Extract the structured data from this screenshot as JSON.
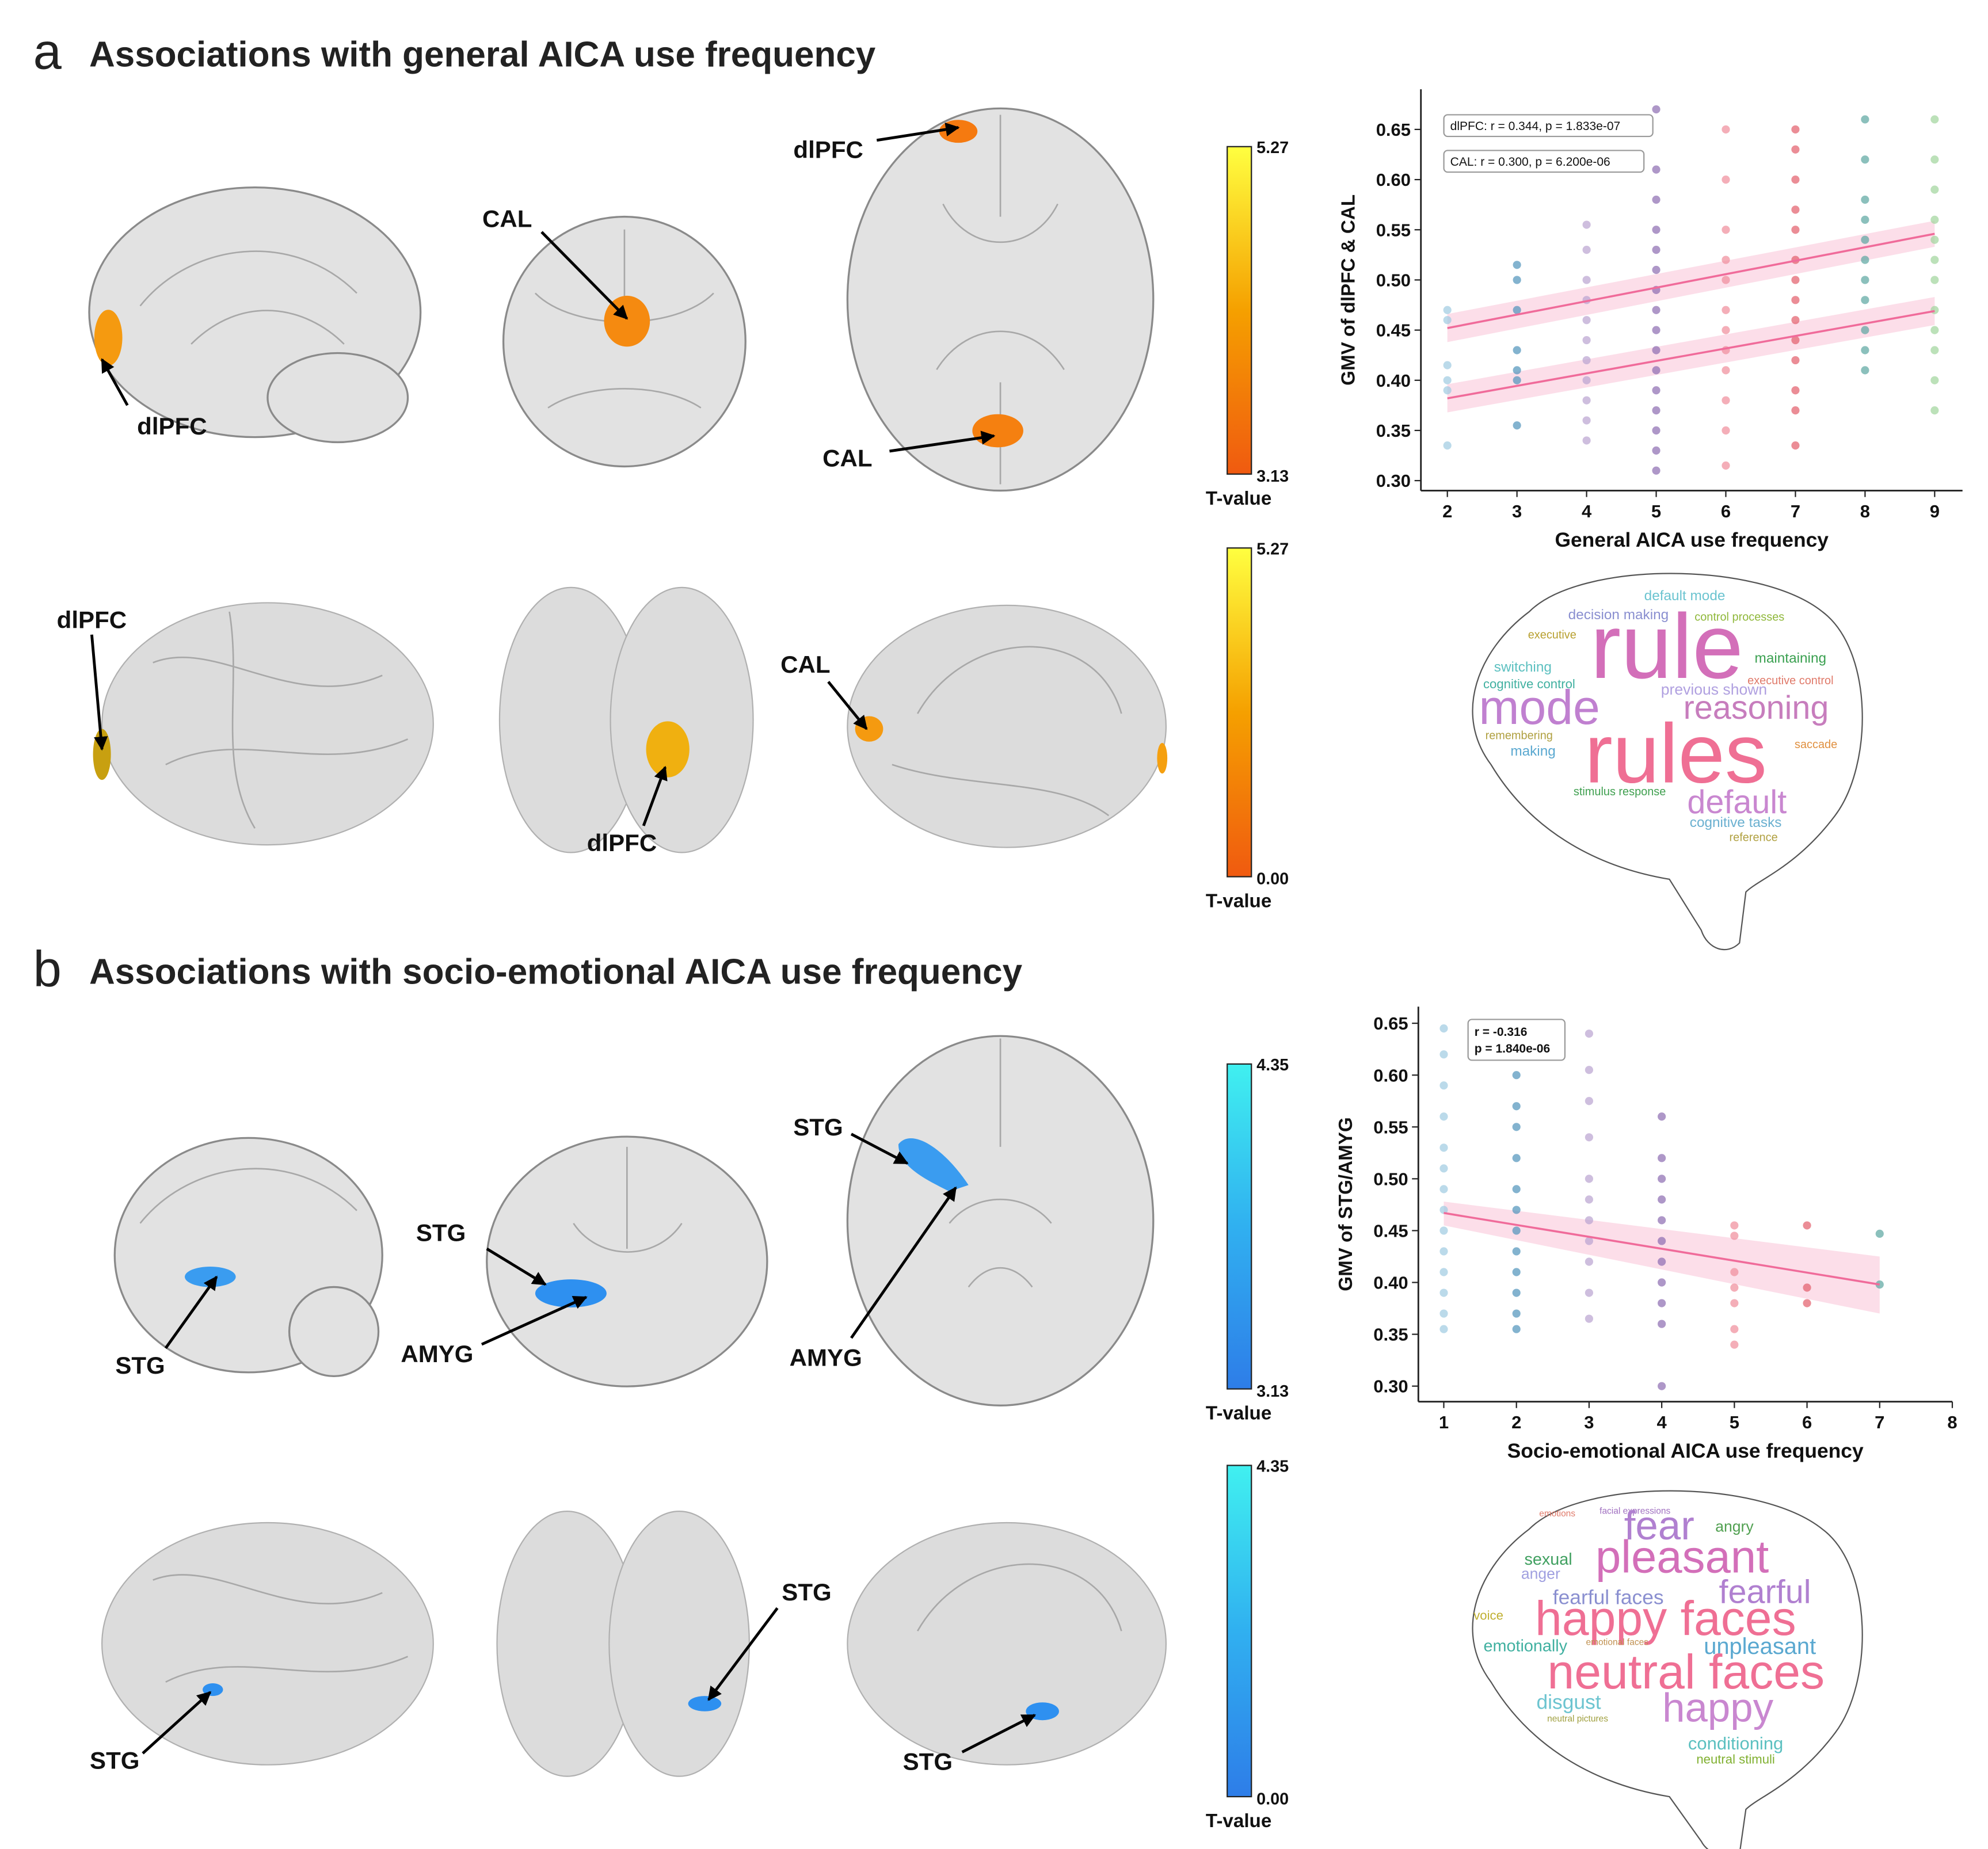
{
  "panels": [
    {
      "letter": "a",
      "title": "Associations with general AICA use frequency",
      "regions": [
        "dlPFC",
        "CAL",
        "dlPFC",
        "CAL",
        "dlPFC",
        "CAL",
        "dlPFC"
      ],
      "colorbars": [
        {
          "top": "5.27",
          "bottom": "3.13",
          "label": "T-value",
          "colors": [
            "#ffff40",
            "#f5a000",
            "#f05a10"
          ]
        },
        {
          "top": "5.27",
          "bottom": "0.00",
          "label": "T-value",
          "colors": [
            "#ffff40",
            "#f5a000",
            "#f05a10"
          ]
        }
      ],
      "words": [
        {
          "text": "default mode",
          "color": "#6cc4d0"
        },
        {
          "text": "decision making",
          "color": "#8a8fd0"
        },
        {
          "text": "control processes",
          "color": "#8fb83a"
        },
        {
          "text": "executive",
          "color": "#b8a030"
        },
        {
          "text": "rule",
          "color": "#d36fb9"
        },
        {
          "text": "maintaining",
          "color": "#3aa050"
        },
        {
          "text": "switching",
          "color": "#5cc0c0"
        },
        {
          "text": "cognitive control",
          "color": "#40b0a0"
        },
        {
          "text": "executive control",
          "color": "#e07a6a"
        },
        {
          "text": "previous shown",
          "color": "#b0a0e0"
        },
        {
          "text": "mode",
          "color": "#c080d0"
        },
        {
          "text": "reasoning",
          "color": "#c77dbd"
        },
        {
          "text": "remembering",
          "color": "#b0a040"
        },
        {
          "text": "saccade",
          "color": "#e09040"
        },
        {
          "text": "making",
          "color": "#5aa8d0"
        },
        {
          "text": "rules",
          "color": "#ef6f94"
        },
        {
          "text": "stimulus response",
          "color": "#40a050"
        },
        {
          "text": "default",
          "color": "#c987d0"
        },
        {
          "text": "cognitive tasks",
          "color": "#6ab0d0"
        },
        {
          "text": "reference",
          "color": "#b0a040"
        }
      ]
    },
    {
      "letter": "b",
      "title": "Associations with socio-emotional AICA use frequency",
      "regions": [
        "STG",
        "STG",
        "AMYG",
        "STG",
        "AMYG",
        "STG",
        "STG",
        "STG"
      ],
      "colorbars": [
        {
          "top": "4.35",
          "bottom": "3.13",
          "label": "T-value",
          "colors": [
            "#40f0f0",
            "#30b0f0",
            "#2e7de8"
          ]
        },
        {
          "top": "4.35",
          "bottom": "0.00",
          "label": "T-value",
          "colors": [
            "#40f0f0",
            "#30b0f0",
            "#2e7de8"
          ]
        }
      ],
      "words": [
        {
          "text": "facial expressions",
          "color": "#a070c0"
        },
        {
          "text": "fear",
          "color": "#b080d0"
        },
        {
          "text": "angry",
          "color": "#50a050"
        },
        {
          "text": "emotions",
          "color": "#e07a6a"
        },
        {
          "text": "pleasant",
          "color": "#d36fb9"
        },
        {
          "text": "sexual",
          "color": "#40a060"
        },
        {
          "text": "anger",
          "color": "#a0a0e0"
        },
        {
          "text": "fearful faces",
          "color": "#8a8fd0"
        },
        {
          "text": "fearful",
          "color": "#b080d0"
        },
        {
          "text": "voice",
          "color": "#c0b030"
        },
        {
          "text": "happy faces",
          "color": "#ef6f94"
        },
        {
          "text": "emotional faces",
          "color": "#c09050"
        },
        {
          "text": "emotionally",
          "color": "#40b0a0"
        },
        {
          "text": "unpleasant",
          "color": "#5aa8d0"
        },
        {
          "text": "neutral faces",
          "color": "#ef6f94"
        },
        {
          "text": "disgust",
          "color": "#6cc4d0"
        },
        {
          "text": "happy",
          "color": "#c987d0"
        },
        {
          "text": "neutral pictures",
          "color": "#a0a040"
        },
        {
          "text": "conditioning",
          "color": "#5cc0c0"
        },
        {
          "text": "neutral stimuli",
          "color": "#80b030"
        }
      ]
    }
  ],
  "chart_data": [
    {
      "type": "scatter",
      "x_label": "General AICA use frequency",
      "y_label": "GMV of dlPFC & CAL",
      "xlim": [
        1.62,
        9.4
      ],
      "ylim": [
        0.29,
        0.69
      ],
      "xticks": [
        2,
        3,
        4,
        5,
        6,
        7,
        8,
        9
      ],
      "yticks": [
        {
          "value": 0.3,
          "label": "0.30"
        },
        0.35,
        {
          "value": 0.4,
          "label": "0.40"
        },
        0.45,
        {
          "value": 0.5,
          "label": "0.50"
        },
        0.55,
        {
          "value": 0.6,
          "label": "0.60"
        },
        0.65
      ],
      "annotations": [
        "dlPFC: r = 0.344, p = 1.833e-07",
        "CAL: r = 0.300, p = 6.200e-06"
      ],
      "series": [
        {
          "color": "#9ecae1",
          "x": [
            2,
            2,
            2,
            2,
            2,
            2
          ],
          "values": [
            0.335,
            0.39,
            0.4,
            0.415,
            0.46,
            0.47
          ]
        },
        {
          "color": "#4f93bb",
          "x": [
            3,
            3,
            3,
            3,
            3,
            3,
            3
          ],
          "values": [
            0.355,
            0.4,
            0.41,
            0.43,
            0.47,
            0.5,
            0.515
          ]
        },
        {
          "color": "#b9a2d0",
          "x": [
            4,
            4,
            4,
            4,
            4,
            4,
            4,
            4,
            4,
            4,
            4
          ],
          "values": [
            0.34,
            0.36,
            0.38,
            0.4,
            0.42,
            0.44,
            0.46,
            0.48,
            0.5,
            0.53,
            0.555
          ]
        },
        {
          "color": "#8c6bb1",
          "x": [
            5,
            5,
            5,
            5,
            5,
            5,
            5,
            5,
            5,
            5,
            5,
            5,
            5,
            5,
            5,
            5
          ],
          "values": [
            0.31,
            0.33,
            0.35,
            0.37,
            0.39,
            0.41,
            0.43,
            0.45,
            0.47,
            0.49,
            0.51,
            0.53,
            0.55,
            0.58,
            0.61,
            0.67
          ]
        },
        {
          "color": "#f08c9a",
          "x": [
            6,
            6,
            6,
            6,
            6,
            6,
            6,
            6,
            6,
            6,
            6,
            6
          ],
          "values": [
            0.315,
            0.35,
            0.38,
            0.41,
            0.43,
            0.45,
            0.47,
            0.5,
            0.52,
            0.55,
            0.6,
            0.65
          ]
        },
        {
          "color": "#e35d6a",
          "x": [
            7,
            7,
            7,
            7,
            7,
            7,
            7,
            7,
            7,
            7,
            7,
            7,
            7,
            7
          ],
          "values": [
            0.335,
            0.37,
            0.39,
            0.42,
            0.44,
            0.46,
            0.48,
            0.5,
            0.52,
            0.55,
            0.57,
            0.6,
            0.63,
            0.65
          ]
        },
        {
          "color": "#5aa5a0",
          "x": [
            8,
            8,
            8,
            8,
            8,
            8,
            8,
            8,
            8,
            8,
            8
          ],
          "values": [
            0.41,
            0.43,
            0.45,
            0.48,
            0.5,
            0.52,
            0.54,
            0.56,
            0.58,
            0.62,
            0.66
          ]
        },
        {
          "color": "#9fd49b",
          "x": [
            9,
            9,
            9,
            9,
            9,
            9,
            9,
            9,
            9,
            9,
            9,
            9
          ],
          "values": [
            0.37,
            0.4,
            0.43,
            0.45,
            0.47,
            0.5,
            0.52,
            0.54,
            0.56,
            0.59,
            0.62,
            0.66
          ]
        }
      ],
      "fits": [
        {
          "color": "#f06b9a",
          "x": [
            2,
            9
          ],
          "values": [
            0.452,
            0.546
          ],
          "ci_lower": [
            0.438,
            0.533
          ],
          "ci_upper": [
            0.466,
            0.559
          ]
        },
        {
          "color": "#f06b9a",
          "x": [
            2,
            9
          ],
          "values": [
            0.382,
            0.469
          ],
          "ci_lower": [
            0.368,
            0.455
          ],
          "ci_upper": [
            0.396,
            0.483
          ]
        }
      ]
    },
    {
      "type": "scatter",
      "x_label": "Socio-emotional AICA use frequency",
      "y_label": "GMV of STG/AMYG",
      "xlim": [
        0.65,
        8.0
      ],
      "ylim": [
        0.285,
        0.666
      ],
      "xticks": [
        1,
        2,
        3,
        4,
        5,
        6,
        7,
        8
      ],
      "yticks": [
        {
          "value": 0.3,
          "label": "0.30"
        },
        0.35,
        {
          "value": 0.4,
          "label": "0.40"
        },
        0.45,
        {
          "value": 0.5,
          "label": "0.50"
        },
        0.55,
        {
          "value": 0.6,
          "label": "0.60"
        },
        0.65
      ],
      "annotations": [
        "r = -0.316",
        "p = 1.840e-06"
      ],
      "series": [
        {
          "color": "#9ecae1",
          "x": [
            1,
            1,
            1,
            1,
            1,
            1,
            1,
            1,
            1,
            1,
            1,
            1,
            1,
            1
          ],
          "values": [
            0.355,
            0.37,
            0.39,
            0.41,
            0.43,
            0.45,
            0.47,
            0.49,
            0.51,
            0.53,
            0.56,
            0.59,
            0.62,
            0.645
          ]
        },
        {
          "color": "#4f93bb",
          "x": [
            2,
            2,
            2,
            2,
            2,
            2,
            2,
            2,
            2,
            2,
            2,
            2
          ],
          "values": [
            0.355,
            0.37,
            0.39,
            0.41,
            0.43,
            0.45,
            0.47,
            0.49,
            0.52,
            0.55,
            0.57,
            0.6
          ]
        },
        {
          "color": "#b9a2d0",
          "x": [
            3,
            3,
            3,
            3,
            3,
            3,
            3,
            3,
            3,
            3,
            3
          ],
          "values": [
            0.365,
            0.39,
            0.42,
            0.44,
            0.46,
            0.48,
            0.5,
            0.54,
            0.575,
            0.605,
            0.64
          ]
        },
        {
          "color": "#8c6bb1",
          "x": [
            4,
            4,
            4,
            4,
            4,
            4,
            4,
            4,
            4,
            4,
            4
          ],
          "values": [
            0.3,
            0.36,
            0.38,
            0.4,
            0.42,
            0.44,
            0.46,
            0.48,
            0.5,
            0.52,
            0.56
          ]
        },
        {
          "color": "#f08c9a",
          "x": [
            5,
            5,
            5,
            5,
            5,
            5,
            5
          ],
          "values": [
            0.34,
            0.355,
            0.38,
            0.395,
            0.41,
            0.445,
            0.455
          ]
        },
        {
          "color": "#e35d6a",
          "x": [
            6,
            6,
            6
          ],
          "values": [
            0.38,
            0.395,
            0.455
          ]
        },
        {
          "color": "#5aa5a0",
          "x": [
            7,
            7
          ],
          "values": [
            0.398,
            0.447
          ]
        }
      ],
      "fits": [
        {
          "color": "#f06b9a",
          "x": [
            1,
            7
          ],
          "values": [
            0.467,
            0.398
          ],
          "ci_lower": [
            0.455,
            0.37
          ],
          "ci_upper": [
            0.478,
            0.425
          ]
        }
      ]
    }
  ]
}
